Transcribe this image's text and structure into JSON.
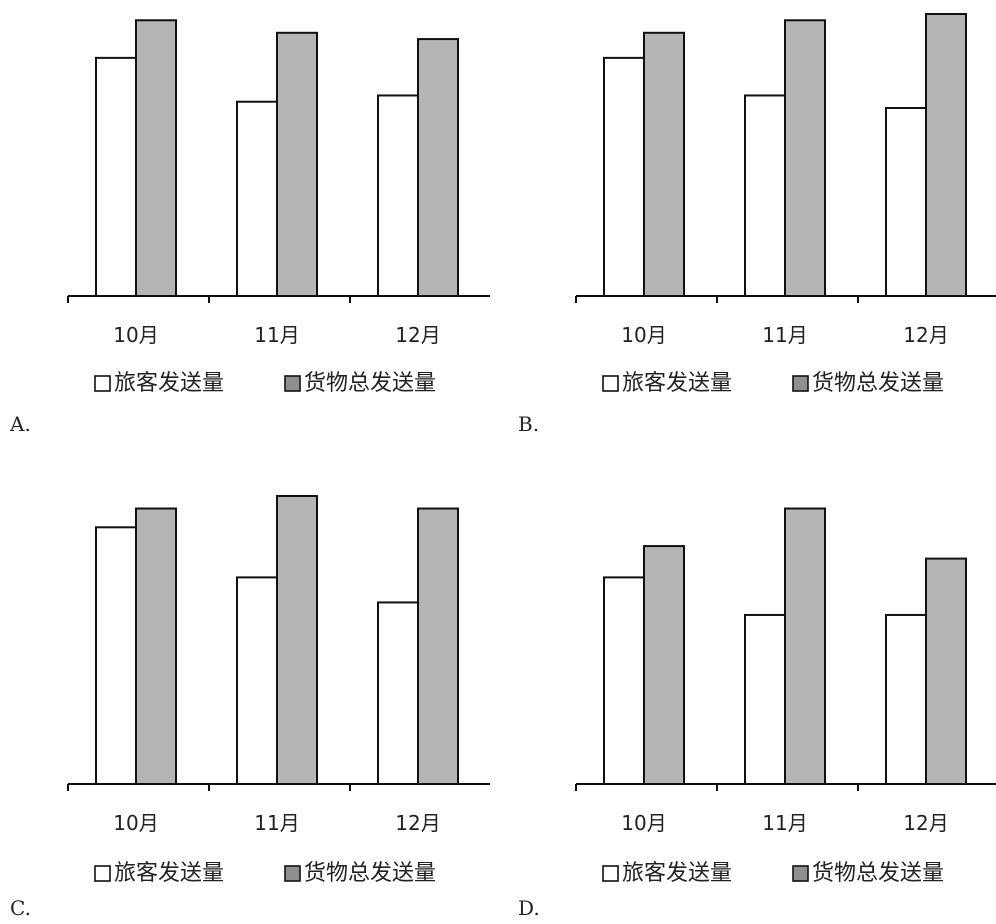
{
  "chart_data": [
    {
      "type": "bar",
      "panel_label": "A.",
      "categories": [
        "10月",
        "11月",
        "12月"
      ],
      "series": [
        {
          "name": "旅客发送量",
          "values": [
            76,
            62,
            64
          ]
        },
        {
          "name": "货物总发送量",
          "values": [
            88,
            84,
            82
          ]
        }
      ],
      "ylim": [
        0,
        90
      ],
      "grid": false,
      "legend": "bottom",
      "colors": {
        "旅客发送量": "#ffffff",
        "货物总发送量": "#b5b5b5"
      }
    },
    {
      "type": "bar",
      "panel_label": "B.",
      "categories": [
        "10月",
        "11月",
        "12月"
      ],
      "series": [
        {
          "name": "旅客发送量",
          "values": [
            76,
            64,
            60
          ]
        },
        {
          "name": "货物总发送量",
          "values": [
            84,
            88,
            90
          ]
        }
      ],
      "ylim": [
        0,
        90
      ],
      "grid": false,
      "legend": "bottom",
      "colors": {
        "旅客发送量": "#ffffff",
        "货物总发送量": "#b5b5b5"
      }
    },
    {
      "type": "bar",
      "panel_label": "C.",
      "categories": [
        "10月",
        "11月",
        "12月"
      ],
      "series": [
        {
          "name": "旅客发送量",
          "values": [
            82,
            66,
            58
          ]
        },
        {
          "name": "货物总发送量",
          "values": [
            88,
            92,
            88
          ]
        }
      ],
      "ylim": [
        0,
        92
      ],
      "grid": false,
      "legend": "bottom",
      "colors": {
        "旅客发送量": "#ffffff",
        "货物总发送量": "#b5b5b5"
      }
    },
    {
      "type": "bar",
      "panel_label": "D.",
      "categories": [
        "10月",
        "11月",
        "12月"
      ],
      "series": [
        {
          "name": "旅客发送量",
          "values": [
            66,
            54,
            54
          ]
        },
        {
          "name": "货物总发送量",
          "values": [
            76,
            88,
            72
          ]
        }
      ],
      "ylim": [
        0,
        92
      ],
      "grid": false,
      "legend": "bottom",
      "colors": {
        "旅客发送量": "#ffffff",
        "货物总发送量": "#b5b5b5"
      }
    }
  ]
}
